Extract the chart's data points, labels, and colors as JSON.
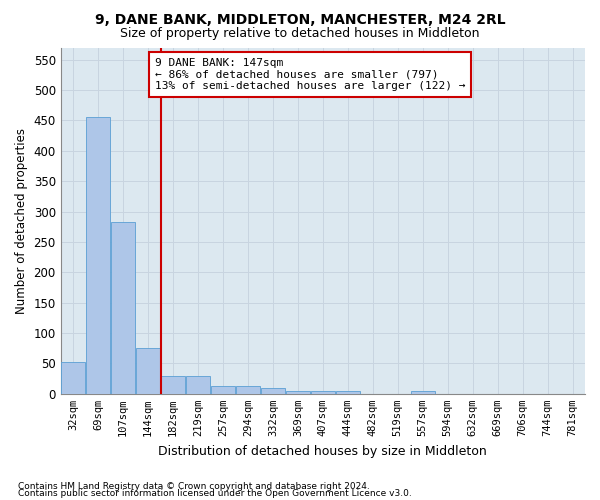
{
  "title": "9, DANE BANK, MIDDLETON, MANCHESTER, M24 2RL",
  "subtitle": "Size of property relative to detached houses in Middleton",
  "xlabel": "Distribution of detached houses by size in Middleton",
  "ylabel": "Number of detached properties",
  "footnote1": "Contains HM Land Registry data © Crown copyright and database right 2024.",
  "footnote2": "Contains public sector information licensed under the Open Government Licence v3.0.",
  "categories": [
    "32sqm",
    "69sqm",
    "107sqm",
    "144sqm",
    "182sqm",
    "219sqm",
    "257sqm",
    "294sqm",
    "332sqm",
    "369sqm",
    "407sqm",
    "444sqm",
    "482sqm",
    "519sqm",
    "557sqm",
    "594sqm",
    "632sqm",
    "669sqm",
    "706sqm",
    "744sqm",
    "781sqm"
  ],
  "values": [
    52,
    455,
    283,
    75,
    30,
    30,
    13,
    13,
    10,
    5,
    5,
    5,
    0,
    0,
    5,
    0,
    0,
    0,
    0,
    0,
    0
  ],
  "bar_color": "#aec6e8",
  "bar_edge_color": "#5a9fd4",
  "vline_index": 3,
  "vline_color": "#cc0000",
  "annotation_text": "9 DANE BANK: 147sqm\n← 86% of detached houses are smaller (797)\n13% of semi-detached houses are larger (122) →",
  "annotation_box_color": "#ffffff",
  "annotation_box_edge": "#cc0000",
  "ylim": [
    0,
    570
  ],
  "yticks": [
    0,
    50,
    100,
    150,
    200,
    250,
    300,
    350,
    400,
    450,
    500,
    550
  ],
  "grid_color": "#c8d4e0",
  "background_color": "#ffffff",
  "ax_bg_color": "#dce8f0"
}
